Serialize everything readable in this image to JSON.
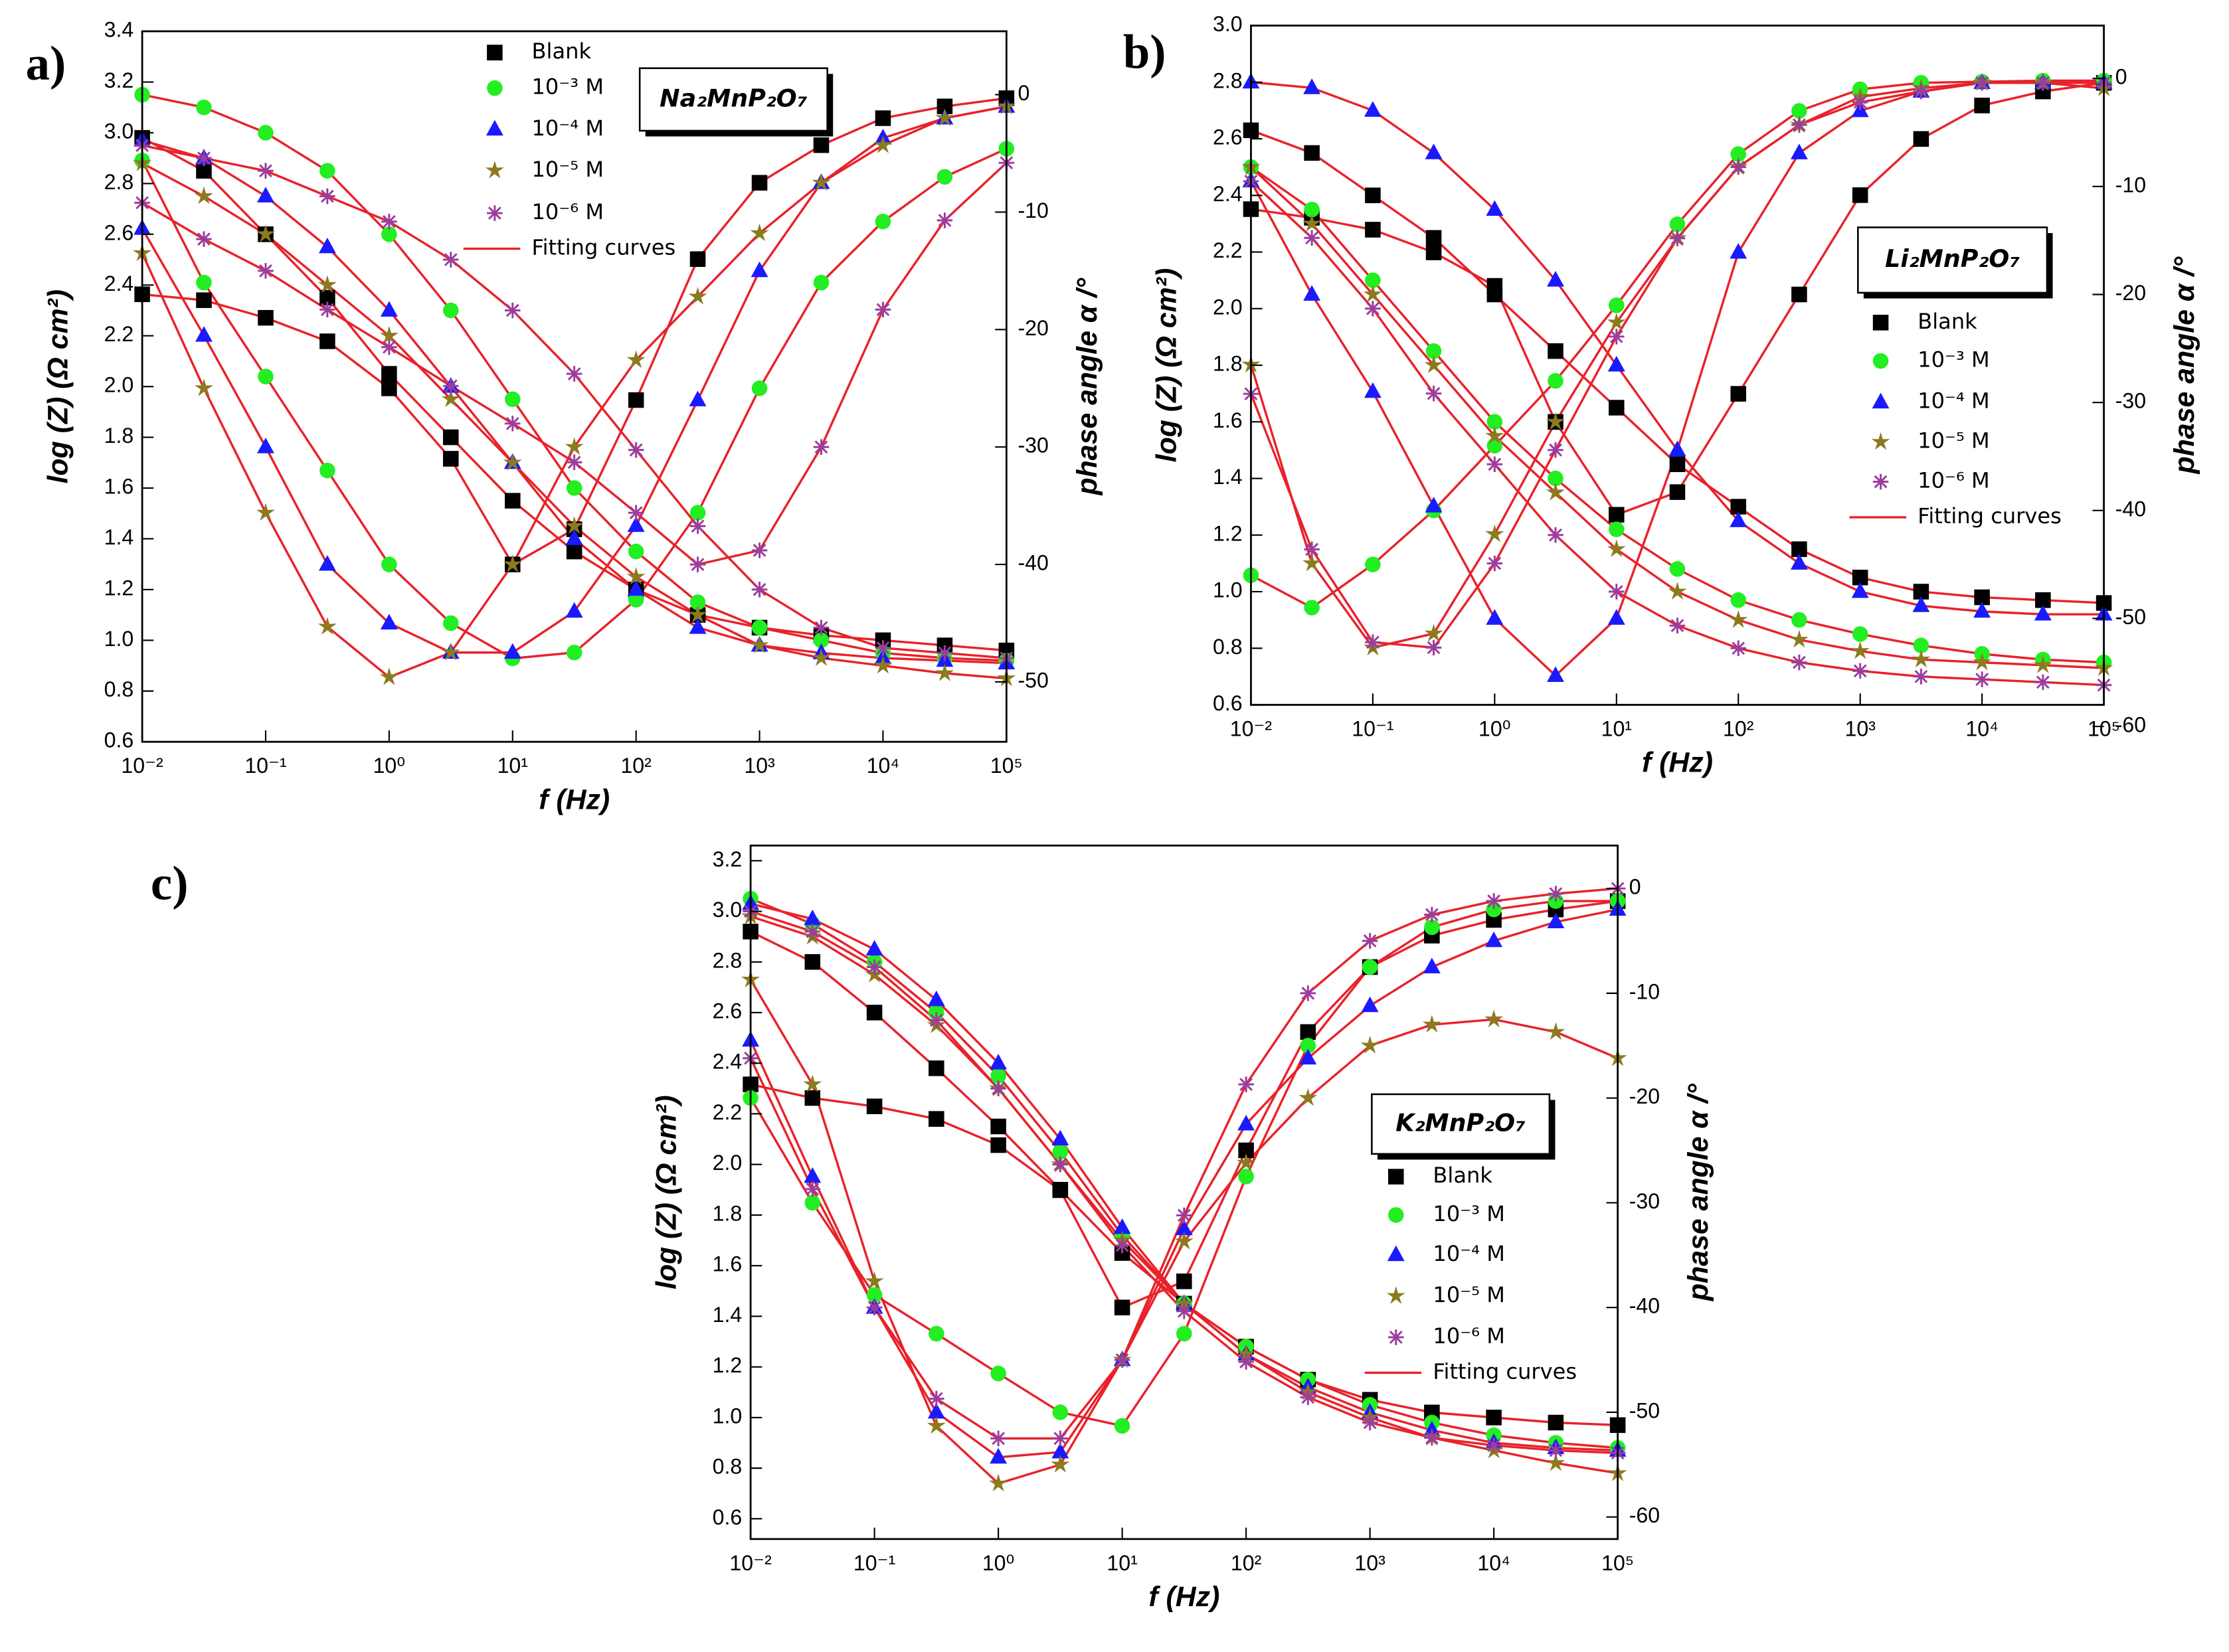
{
  "chart_data": [
    {
      "type": "line",
      "panel_label": "a)",
      "compound": "Na₂MnP₂O₇",
      "xlabel": "f (Hz)",
      "ylabel": "log (Z) (Ω cm²)",
      "y2label": "phase angle α /°",
      "xscale": "log",
      "x": [
        0.01,
        0.0316,
        0.1,
        0.316,
        1,
        3.16,
        10,
        31.6,
        100,
        316,
        1000,
        3162,
        10000,
        31623,
        100000
      ],
      "xlim": [
        0.01,
        100000
      ],
      "xticks": [
        {
          "value": 0.01,
          "label": "10⁻²"
        },
        {
          "value": 0.1,
          "label": "10⁻¹"
        },
        {
          "value": 1,
          "label": "10⁰"
        },
        {
          "value": 10,
          "label": "10¹"
        },
        {
          "value": 100,
          "label": "10²"
        },
        {
          "value": 1000,
          "label": "10³"
        },
        {
          "value": 10000,
          "label": "10⁴"
        },
        {
          "value": 100000,
          "label": "10⁵"
        }
      ],
      "ylim": [
        0.6,
        3.4
      ],
      "yticks": [
        0.6,
        0.8,
        {
          "value": 1,
          "label": "1.0"
        },
        1.2,
        1.4,
        1.6,
        1.8,
        {
          "value": 2,
          "label": "2.0"
        },
        2.2,
        2.4,
        2.6,
        2.8,
        {
          "value": 3,
          "label": "3.0"
        },
        3.2,
        3.4
      ],
      "y2lim": [
        -55.1,
        5.4
      ],
      "y2ticks": [
        0,
        -10,
        -20,
        -30,
        -40,
        -50
      ],
      "series": [
        {
          "name": "Blank",
          "color": "#000000",
          "marker": "square",
          "values": [
            2.98,
            2.85,
            2.6,
            2.35,
            2.05,
            1.8,
            1.55,
            1.35,
            1.2,
            1.1,
            1.05,
            1.02,
            1.0,
            0.98,
            0.96
          ],
          "phase_values": [
            -17,
            -17.5,
            -19,
            -21,
            -25,
            -31,
            -40,
            -37,
            -26,
            -14,
            -7.5,
            -4.3,
            -2,
            -1,
            -0.3
          ]
        },
        {
          "name": "10⁻³ M",
          "color": "#22ee22",
          "marker": "circle",
          "values": [
            3.15,
            3.1,
            3.0,
            2.85,
            2.6,
            2.3,
            1.95,
            1.6,
            1.35,
            1.15,
            1.05,
            1.0,
            0.95,
            0.93,
            0.92
          ],
          "phase_values": [
            -5.6,
            -16,
            -24,
            -32,
            -40,
            -45,
            -48,
            -47.5,
            -43,
            -35.6,
            -25,
            -16,
            -10.8,
            -7,
            -4.6
          ]
        },
        {
          "name": "10⁻⁴ M",
          "color": "#1a1aff",
          "marker": "triangle",
          "values": [
            2.97,
            2.9,
            2.75,
            2.55,
            2.3,
            2.0,
            1.7,
            1.4,
            1.2,
            1.05,
            0.98,
            0.95,
            0.93,
            0.92,
            0.91
          ],
          "phase_values": [
            -11.4,
            -20.5,
            -30,
            -40,
            -45,
            -47.5,
            -47.5,
            -44,
            -36.7,
            -26,
            -15,
            -7.5,
            -3.7,
            -2,
            -1
          ]
        },
        {
          "name": "10⁻⁵ M",
          "color": "#8c7a1e",
          "marker": "star",
          "values": [
            2.88,
            2.75,
            2.6,
            2.4,
            2.2,
            1.95,
            1.7,
            1.45,
            1.25,
            1.1,
            0.98,
            0.93,
            0.9,
            0.87,
            0.85
          ],
          "phase_values": [
            -13.5,
            -25,
            -35.6,
            -45.3,
            -49.6,
            -47.5,
            -40,
            -30,
            -22.6,
            -17.2,
            -11.8,
            -7.5,
            -4.3,
            -2,
            -1
          ]
        },
        {
          "name": "10⁻⁶ M",
          "color": "#9c3d9c",
          "marker": "asterisk",
          "values": [
            2.95,
            2.9,
            2.85,
            2.75,
            2.65,
            2.5,
            2.3,
            2.05,
            1.75,
            1.45,
            1.2,
            1.05,
            0.97,
            0.95,
            0.93
          ],
          "phase_values": [
            -9.2,
            -12.3,
            -15,
            -18.3,
            -21.5,
            -24.8,
            -28,
            -31.3,
            -35.6,
            -40,
            -38.8,
            -30,
            -18.3,
            -10.7,
            -5.8
          ]
        }
      ],
      "fit": {
        "name": "Fitting curves",
        "color": "#e8222a"
      }
    },
    {
      "type": "line",
      "panel_label": "b)",
      "compound": "Li₂MnP₂O₇",
      "xlabel": "f (Hz)",
      "ylabel": "log (Z) (Ω cm²)",
      "y2label": "phase angle α /°",
      "xscale": "log",
      "x": [
        0.01,
        0.0316,
        0.1,
        0.316,
        1,
        3.16,
        10,
        31.6,
        100,
        316,
        1000,
        3162,
        10000,
        31623,
        100000
      ],
      "xlim": [
        0.01,
        100000
      ],
      "xticks": [
        {
          "value": 0.01,
          "label": "10⁻²"
        },
        {
          "value": 0.1,
          "label": "10⁻¹"
        },
        {
          "value": 1,
          "label": "10⁰"
        },
        {
          "value": 10,
          "label": "10¹"
        },
        {
          "value": 100,
          "label": "10²"
        },
        {
          "value": 1000,
          "label": "10³"
        },
        {
          "value": 10000,
          "label": "10⁴"
        },
        {
          "value": 100000,
          "label": "10⁵"
        }
      ],
      "ylim": [
        0.6,
        3.0
      ],
      "yticks": [
        0.6,
        0.8,
        {
          "value": 1,
          "label": "1.0"
        },
        1.2,
        1.4,
        1.6,
        1.8,
        {
          "value": 2,
          "label": "2.0"
        },
        2.2,
        2.4,
        2.6,
        2.8,
        {
          "value": 3,
          "label": "3.0"
        }
      ],
      "y2lim": [
        -58,
        4.9
      ],
      "y2ticks": [
        0,
        -10,
        -20,
        -30,
        -40,
        -50,
        -60
      ],
      "series": [
        {
          "name": "Blank",
          "color": "#000000",
          "marker": "square",
          "values": [
            2.63,
            2.55,
            2.4,
            2.25,
            2.05,
            1.85,
            1.65,
            1.45,
            1.3,
            1.15,
            1.05,
            1.0,
            0.98,
            0.97,
            0.96
          ],
          "phase_values": [
            -12.1,
            -12.9,
            -14,
            -16.1,
            -19.2,
            -31.8,
            -40.4,
            -38.3,
            -29.2,
            -20,
            -10.8,
            -5.6,
            -2.5,
            -1.2,
            -0.4
          ]
        },
        {
          "name": "10⁻³ M",
          "color": "#22ee22",
          "marker": "circle",
          "values": [
            2.5,
            2.35,
            2.1,
            1.85,
            1.6,
            1.4,
            1.22,
            1.08,
            0.97,
            0.9,
            0.85,
            0.81,
            0.78,
            0.76,
            0.75
          ],
          "phase_values": [
            -46,
            -49,
            -45,
            -40,
            -34,
            -28,
            -21,
            -13.5,
            -7,
            -3,
            -1,
            -0.4,
            -0.3,
            -0.2,
            -0.2
          ]
        },
        {
          "name": "10⁻⁴ M",
          "color": "#1a1aff",
          "marker": "triangle",
          "values": [
            2.8,
            2.78,
            2.7,
            2.55,
            2.35,
            2.1,
            1.8,
            1.5,
            1.25,
            1.1,
            1.0,
            0.95,
            0.93,
            0.92,
            0.92
          ],
          "phase_values": [
            -9.5,
            -20,
            -29,
            -39.6,
            -50,
            -55.3,
            -50,
            -34.4,
            -16.1,
            -6.9,
            -3,
            -1.2,
            -0.4,
            -0.4,
            -0.4
          ]
        },
        {
          "name": "10⁻⁵ M",
          "color": "#8c7a1e",
          "marker": "star",
          "values": [
            2.5,
            2.3,
            2.05,
            1.8,
            1.55,
            1.35,
            1.15,
            1.0,
            0.9,
            0.83,
            0.79,
            0.76,
            0.75,
            0.74,
            0.73
          ],
          "phase_values": [
            -26.5,
            -44.9,
            -52.7,
            -51.4,
            -42.2,
            -31.8,
            -22.6,
            -14.8,
            -8.2,
            -4.3,
            -1.7,
            -0.9,
            -0.4,
            -0.4,
            -0.9
          ]
        },
        {
          "name": "10⁻⁶ M",
          "color": "#9c3d9c",
          "marker": "asterisk",
          "values": [
            2.45,
            2.25,
            2.0,
            1.7,
            1.45,
            1.2,
            1.0,
            0.88,
            0.8,
            0.75,
            0.72,
            0.7,
            0.69,
            0.68,
            0.67
          ],
          "phase_values": [
            -29.2,
            -43.6,
            -52.2,
            -52.7,
            -44.9,
            -34.4,
            -23.9,
            -14.8,
            -8.2,
            -4.3,
            -2.2,
            -1.2,
            -0.4,
            -0.4,
            -0.4
          ]
        }
      ],
      "fit": {
        "name": "Fitting curves",
        "color": "#e8222a"
      }
    },
    {
      "type": "line",
      "panel_label": "c)",
      "compound": "K₂MnP₂O₇",
      "xlabel": "f (Hz)",
      "ylabel": "log (Z) (Ω cm²)",
      "y2label": "phase angle α /°",
      "xscale": "log",
      "x": [
        0.01,
        0.0316,
        0.1,
        0.316,
        1,
        3.16,
        10,
        31.6,
        100,
        316,
        1000,
        3162,
        10000,
        31623,
        100000
      ],
      "xlim": [
        0.01,
        100000
      ],
      "xticks": [
        {
          "value": 0.01,
          "label": "10⁻²"
        },
        {
          "value": 0.1,
          "label": "10⁻¹"
        },
        {
          "value": 1,
          "label": "10⁰"
        },
        {
          "value": 10,
          "label": "10¹"
        },
        {
          "value": 100,
          "label": "10²"
        },
        {
          "value": 1000,
          "label": "10³"
        },
        {
          "value": 10000,
          "label": "10⁴"
        },
        {
          "value": 100000,
          "label": "10⁵"
        }
      ],
      "ylim": [
        0.52,
        3.26
      ],
      "yticks": [
        0.6,
        0.8,
        {
          "value": 1,
          "label": "1.0"
        },
        1.2,
        1.4,
        1.6,
        1.8,
        {
          "value": 2,
          "label": "2.0"
        },
        2.2,
        2.4,
        2.6,
        2.8,
        {
          "value": 3,
          "label": "3.0"
        },
        3.2
      ],
      "y2lim": [
        -62.1,
        4.1
      ],
      "y2ticks": [
        0,
        -10,
        -20,
        -30,
        -40,
        -50,
        -60
      ],
      "series": [
        {
          "name": "Blank",
          "color": "#000000",
          "marker": "square",
          "values": [
            2.92,
            2.8,
            2.6,
            2.38,
            2.15,
            1.9,
            1.65,
            1.45,
            1.28,
            1.15,
            1.07,
            1.02,
            1.0,
            0.98,
            0.97
          ],
          "phase_values": [
            -18.7,
            -20,
            -20.8,
            -22,
            -24.5,
            -28.8,
            -40,
            -37.5,
            -25,
            -13.7,
            -7.5,
            -4.5,
            -3,
            -2,
            -1.2
          ]
        },
        {
          "name": "10⁻³ M",
          "color": "#22ee22",
          "marker": "circle",
          "values": [
            3.05,
            2.95,
            2.8,
            2.6,
            2.35,
            2.05,
            1.72,
            1.45,
            1.28,
            1.15,
            1.05,
            0.98,
            0.93,
            0.9,
            0.88
          ],
          "phase_values": [
            -20,
            -30,
            -38.8,
            -42.5,
            -46.3,
            -50,
            -51.3,
            -42.5,
            -27.5,
            -15,
            -7.5,
            -3.7,
            -2,
            -1.2,
            -1.2
          ]
        },
        {
          "name": "10⁻⁴ M",
          "color": "#1a1aff",
          "marker": "triangle",
          "values": [
            3.03,
            2.97,
            2.85,
            2.65,
            2.4,
            2.1,
            1.75,
            1.45,
            1.25,
            1.12,
            1.02,
            0.95,
            0.9,
            0.88,
            0.87
          ],
          "phase_values": [
            -14.5,
            -27.5,
            -40,
            -50,
            -54.3,
            -53.8,
            -45,
            -32.5,
            -22.5,
            -16.2,
            -11.2,
            -7.5,
            -5,
            -3.2,
            -2
          ]
        },
        {
          "name": "10⁻⁵ M",
          "color": "#8c7a1e",
          "marker": "star",
          "values": [
            2.98,
            2.9,
            2.75,
            2.55,
            2.3,
            2.0,
            1.7,
            1.45,
            1.25,
            1.1,
            1.0,
            0.92,
            0.87,
            0.82,
            0.78
          ],
          "phase_values": [
            -8.7,
            -18.7,
            -37.5,
            -51.3,
            -56.8,
            -55,
            -45,
            -33.7,
            -26.2,
            -20,
            -15,
            -13,
            -12.5,
            -13.7,
            -16.2
          ]
        },
        {
          "name": "10⁻⁶ M",
          "color": "#9c3d9c",
          "marker": "asterisk",
          "values": [
            3.0,
            2.92,
            2.78,
            2.57,
            2.3,
            2.0,
            1.68,
            1.42,
            1.22,
            1.08,
            0.98,
            0.92,
            0.89,
            0.87,
            0.86
          ],
          "phase_values": [
            -16.2,
            -28.7,
            -40,
            -48.7,
            -52.5,
            -52.5,
            -45,
            -31.2,
            -18.7,
            -10,
            -5,
            -2.5,
            -1.2,
            -0.5,
            0
          ]
        }
      ],
      "fit": {
        "name": "Fitting curves",
        "color": "#e8222a"
      }
    }
  ]
}
